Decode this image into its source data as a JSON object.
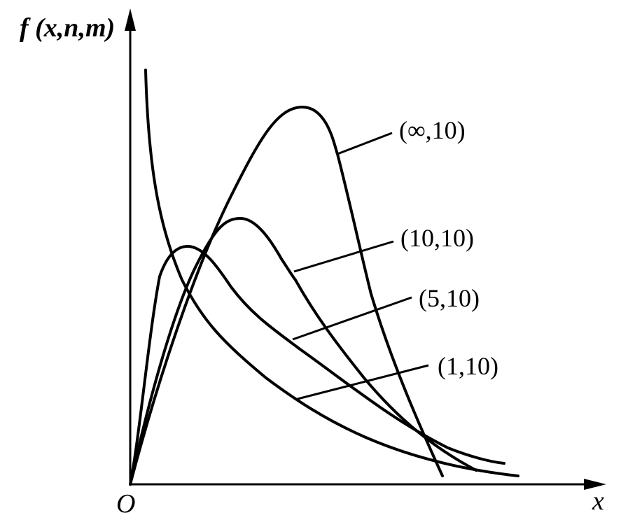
{
  "chart_data": {
    "type": "line",
    "title": "",
    "ylabel": "f (x,n,m)",
    "xlabel": "x",
    "origin_label": "O",
    "grid": false,
    "legend": "inline labels with leader lines",
    "colors": {
      "line": "#000000",
      "background": "#ffffff"
    },
    "series": [
      {
        "name": "(∞,10)",
        "params": {
          "n": "inf",
          "m": 10
        }
      },
      {
        "name": "(10,10)",
        "params": {
          "n": 10,
          "m": 10
        }
      },
      {
        "name": "(5,10)",
        "params": {
          "n": 5,
          "m": 10
        }
      },
      {
        "name": "(1,10)",
        "params": {
          "n": 1,
          "m": 10
        }
      }
    ]
  }
}
